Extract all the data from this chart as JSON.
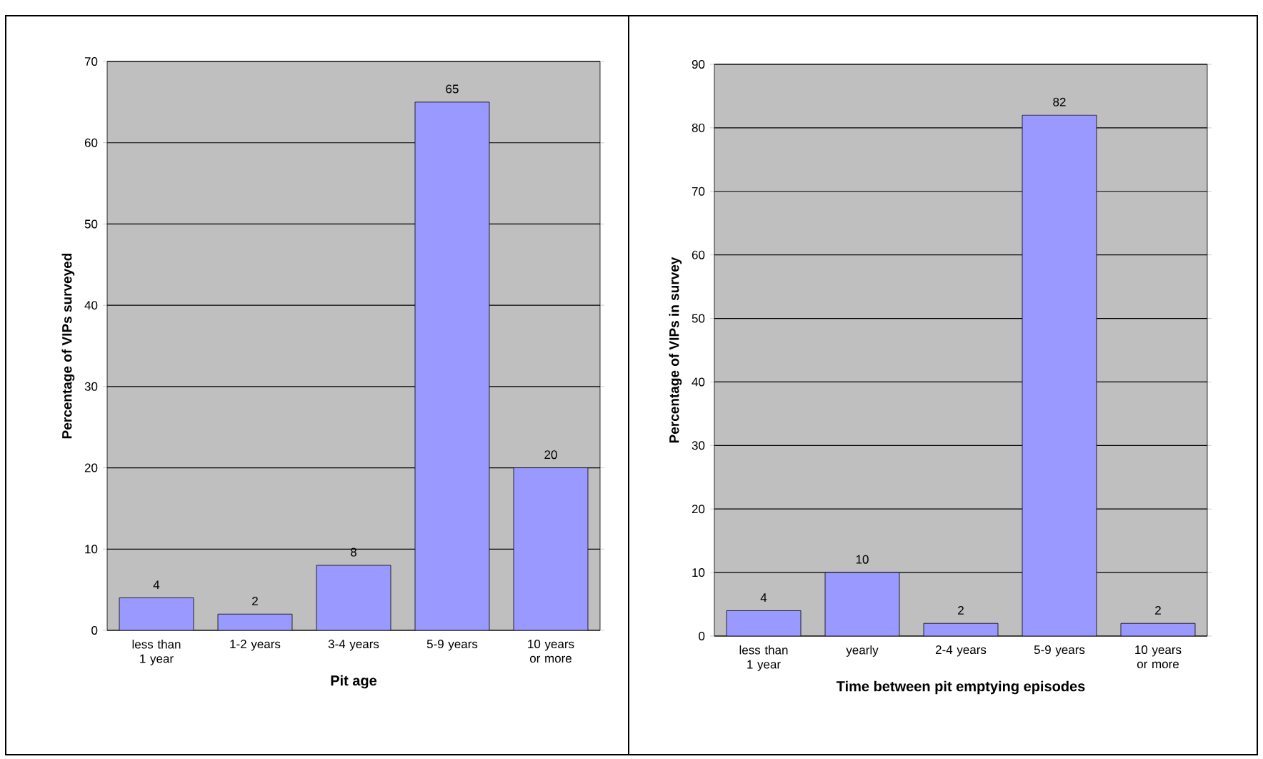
{
  "chart_data": [
    {
      "type": "bar",
      "categories": [
        "less than 1 year",
        "1-2 years",
        "3-4 years",
        "5-9 years",
        "10 years or more"
      ],
      "values": [
        4,
        2,
        8,
        65,
        20
      ],
      "color": "#9999ff",
      "xlabel": "Pit age",
      "ylabel": "Percentage of VIPs surveyed",
      "ylim": [
        0,
        70
      ],
      "yticks": [
        0,
        10,
        20,
        30,
        40,
        50,
        60,
        70
      ],
      "grid": "y",
      "data_labels": true
    },
    {
      "type": "bar",
      "categories": [
        "less than 1 year",
        "yearly",
        "2-4 years",
        "5-9 years",
        "10 years or more"
      ],
      "values": [
        4,
        10,
        2,
        82,
        2
      ],
      "color": "#9999ff",
      "xlabel": "Time between pit emptying episodes",
      "ylabel": "Percentage of VIPs in survey",
      "ylim": [
        0,
        90
      ],
      "yticks": [
        0,
        10,
        20,
        30,
        40,
        50,
        60,
        70,
        80,
        90
      ],
      "grid": "y",
      "data_labels": true
    }
  ]
}
